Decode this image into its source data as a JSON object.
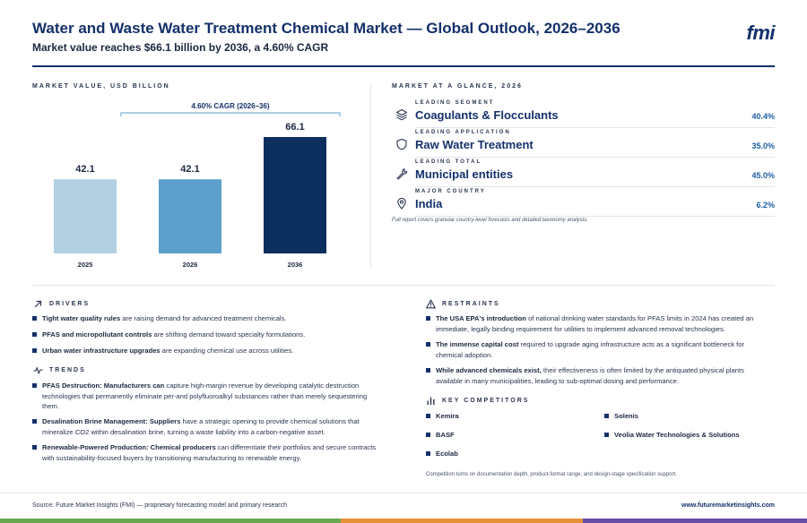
{
  "header": {
    "title": "Water and Waste Water Treatment Chemical Market — Global Outlook, 2026–2036",
    "subtitle": "Market value reaches $66.1 billion by 2036, a 4.60% CAGR",
    "logo": "fmi"
  },
  "chart_section": {
    "label": "MARKET VALUE, USD BILLION"
  },
  "chart_data": {
    "type": "bar",
    "categories": [
      "2025",
      "2026",
      "2036"
    ],
    "values": [
      42.1,
      42.1,
      66.1
    ],
    "value_labels": [
      "42.1",
      "42.1",
      "66.1"
    ],
    "colors": [
      "#b3cfe2",
      "#5c9fcb",
      "#0d2f5e"
    ],
    "annotation": "4.60% CAGR (2026–36)",
    "ylim": [
      0,
      66.1
    ]
  },
  "glance": {
    "label": "MARKET AT A GLANCE, 2026",
    "rows": [
      {
        "caption": "LEADING SEGMENT",
        "value": "Coagulants & Flocculants",
        "pct": "40.4%",
        "icon": "layers-icon"
      },
      {
        "caption": "LEADING APPLICATION",
        "value": "Raw Water Treatment",
        "pct": "35.0%",
        "icon": "shield-icon"
      },
      {
        "caption": "LEADING TOTAL",
        "value": "Municipal entities",
        "pct": "45.0%",
        "icon": "wrench-icon"
      },
      {
        "caption": "MAJOR COUNTRY",
        "value": "India",
        "pct": "6.2%",
        "icon": "map-pin-icon"
      }
    ],
    "note": "Full report covers granular country-level forecasts and detailed taxonomy analysis."
  },
  "drivers": {
    "label": "DRIVERS",
    "items": [
      {
        "bold": "Tight water quality rules",
        "text": " are raising demand for advanced treatment chemicals."
      },
      {
        "bold": "PFAS and micropollutant controls",
        "text": " are shifting demand toward specialty formulations."
      },
      {
        "bold": "Urban water infrastructure upgrades",
        "text": " are expanding chemical use across utilities."
      }
    ]
  },
  "trends": {
    "label": "TRENDS",
    "items": [
      {
        "bold": "PFAS Destruction: Manufacturers can",
        "text": " capture high-margin revenue by developing catalytic destruction technologies that permanently eliminate per-and polyfluoroalkyl substances rather than merely sequestering them."
      },
      {
        "bold": "Desalination Brine Management: Suppliers",
        "text": " have a strategic opening to provide chemical solutions that mineralize CO2 within desalination brine, turning a waste liability into a carbon-negative asset."
      },
      {
        "bold": "Renewable-Powered Production: Chemical producers",
        "text": " can differentiate their portfolios and secure contracts with sustainability-focused buyers by transitioning manufacturing to renewable energy."
      }
    ]
  },
  "restraints": {
    "label": "RESTRAINTS",
    "items": [
      {
        "bold": "The USA EPA's introduction",
        "text": " of national drinking water standards for PFAS limits in 2024 has created an immediate, legally binding requirement for utilities to implement advanced removal technologies."
      },
      {
        "bold": "The immense capital cost",
        "text": " required to upgrade aging infrastructure acts as a significant bottleneck for chemical adoption."
      },
      {
        "bold": "While advanced chemicals exist,",
        "text": " their effectiveness is often limited by the antiquated physical plants available in many municipalities, leading to sub-optimal dosing and performance."
      }
    ]
  },
  "competitors": {
    "label": "KEY COMPETITORS",
    "items": [
      "Kemira",
      "Solenis",
      "BASF",
      "Veolia Water Technologies & Solutions",
      "Ecolab"
    ],
    "note": "Competition turns on documentation depth, product-format range, and design-stage specification support."
  },
  "footer": {
    "source": "Source: Future Market Insights (FMI) — proprietary forecasting model and primary research",
    "url": "www.futuremarketinsights.com"
  },
  "colors": {
    "navy": "#14306b",
    "accent_blue": "#1d5fa3",
    "stripe": [
      "#6aa84f",
      "#e69138",
      "#674ea7"
    ]
  }
}
